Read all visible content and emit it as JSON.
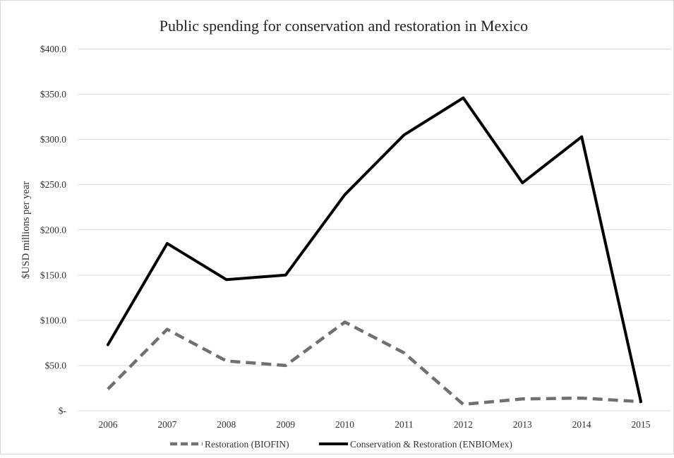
{
  "chart_data": {
    "type": "line",
    "title": "Public spending for conservation and restoration in Mexico",
    "xlabel": "",
    "ylabel": "$USD millions  per year",
    "categories": [
      "2006",
      "2007",
      "2008",
      "2009",
      "2010",
      "2011",
      "2012",
      "2013",
      "2014",
      "2015"
    ],
    "y_tick_labels": [
      "$-",
      "$50.0",
      "$100.0",
      "$150.0",
      "$200.0",
      "$250.0",
      "$300.0",
      "$350.0",
      "$400.0"
    ],
    "ylim": [
      0,
      400
    ],
    "grid": true,
    "legend_position": "bottom",
    "series": [
      {
        "name": "Restoration (BIOFIN)",
        "values": [
          24,
          90,
          55,
          50,
          98,
          64,
          7,
          13,
          14,
          10
        ],
        "color": "#707070",
        "style": "dashed"
      },
      {
        "name": "Conservation & Restoration (ENBIOMex)",
        "values": [
          73,
          185,
          145,
          150,
          239,
          305,
          346,
          252,
          303,
          10
        ],
        "color": "#000000",
        "style": "solid"
      }
    ]
  }
}
